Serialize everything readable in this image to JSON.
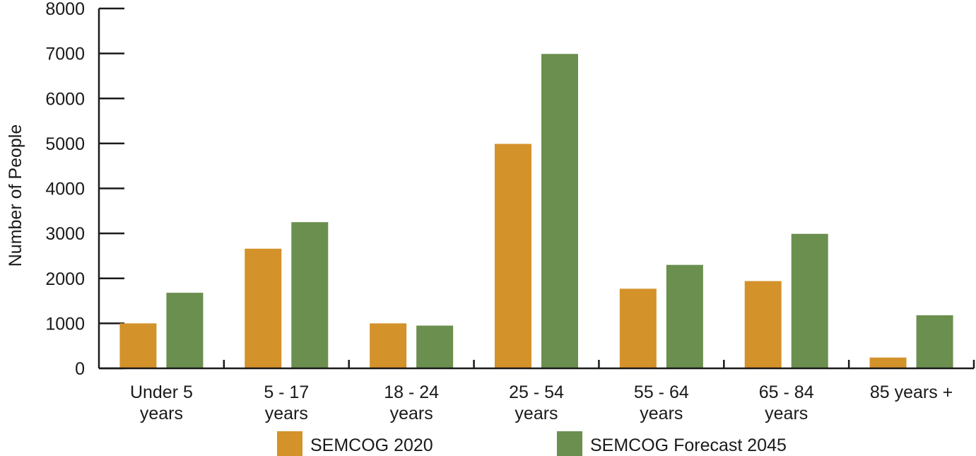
{
  "chart_data": {
    "type": "bar",
    "title": "",
    "xlabel": "",
    "ylabel": "Number of People",
    "ylim": [
      0,
      8000
    ],
    "yticks": [
      0,
      1000,
      2000,
      3000,
      4000,
      5000,
      6000,
      7000,
      8000
    ],
    "categories": [
      [
        "Under 5",
        "years"
      ],
      [
        "5 - 17",
        "years"
      ],
      [
        "18 - 24",
        "years"
      ],
      [
        "25 - 54",
        "years"
      ],
      [
        "55 - 64",
        "years"
      ],
      [
        "65 - 84",
        "years"
      ],
      [
        "85 years +"
      ]
    ],
    "series": [
      {
        "name": "SEMCOG 2020",
        "color": "#d4922b",
        "values": [
          1000,
          2660,
          1000,
          4990,
          1770,
          1940,
          240
        ]
      },
      {
        "name": "SEMCOG Forecast 2045",
        "color": "#6b8f4e",
        "values": [
          1680,
          3250,
          950,
          6990,
          2300,
          2990,
          1180
        ]
      }
    ],
    "grid": false,
    "legend": "bottom"
  }
}
